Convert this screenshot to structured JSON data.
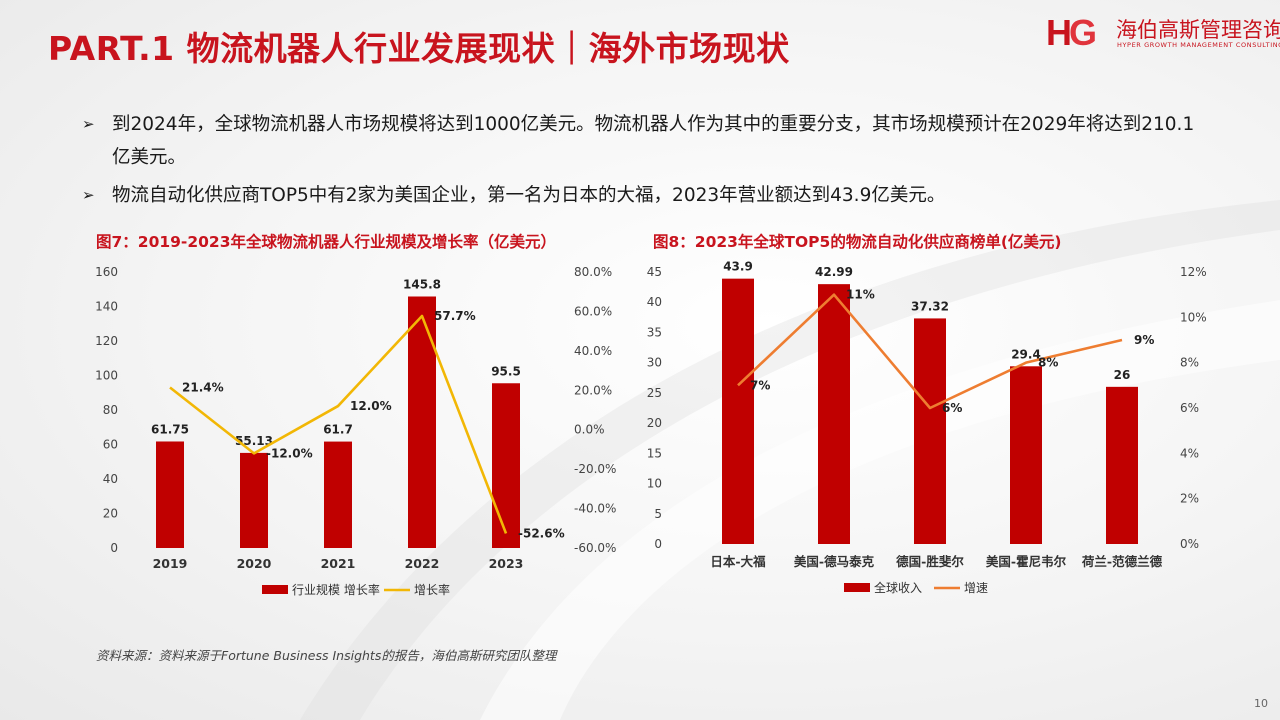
{
  "header": {
    "title": "PART.1 物流机器人行业发展现状｜海外市场现状",
    "logo_mark": "HG",
    "logo_cn": "海伯高斯管理咨询",
    "logo_en": "HYPER GROWTH MANAGEMENT CONSULTING"
  },
  "bullets": [
    "到2024年，全球物流机器人市场规模将达到1000亿美元。物流机器人作为其中的重要分支，其市场规模预计在2029年将达到210.1亿美元。",
    "物流自动化供应商TOP5中有2家为美国企业，第一名为日本的大福，2023年营业额达到43.9亿美元。"
  ],
  "colors": {
    "accent": "#c8141e",
    "bar": "#c00000",
    "line1": "#f2b705",
    "line2": "#ee7d31"
  },
  "icons": {
    "bullet": "arrow-bullet-icon"
  },
  "chart_data": [
    {
      "type": "bar",
      "title": "图7：2019-2023年全球物流机器人行业规模及增长率（亿美元）",
      "categories": [
        "2019",
        "2020",
        "2021",
        "2022",
        "2023"
      ],
      "series": [
        {
          "name": "行业规模 增长率",
          "kind": "bar",
          "axis": "left",
          "values": [
            61.75,
            55.13,
            61.7,
            145.8,
            95.5
          ],
          "labels": [
            "61.75",
            "55.13",
            "61.7",
            "145.8",
            "95.5"
          ]
        },
        {
          "name": "增长率",
          "kind": "line",
          "axis": "right",
          "values": [
            21.4,
            -12.0,
            12.0,
            57.7,
            -52.6
          ],
          "labels": [
            "21.4%",
            "-12.0%",
            "12.0%",
            "57.7%",
            "-52.6%"
          ]
        }
      ],
      "y_left": {
        "min": 0,
        "max": 160,
        "ticks": [
          "160",
          "140",
          "120",
          "100",
          "80",
          "60",
          "40",
          "20",
          "0"
        ]
      },
      "y_right": {
        "min": -60,
        "max": 80,
        "ticks": [
          "80.0%",
          "60.0%",
          "40.0%",
          "20.0%",
          "0.0%",
          "-20.0%",
          "-40.0%",
          "-60.0%"
        ]
      },
      "legend": "bottom"
    },
    {
      "type": "bar",
      "title": "图8：2023年全球TOP5的物流自动化供应商榜单(亿美元)",
      "categories": [
        "日本-大福",
        "美国-德马泰克",
        "德国-胜斐尔",
        "美国-霍尼韦尔",
        "荷兰-范德兰德"
      ],
      "series": [
        {
          "name": "全球收入",
          "kind": "bar",
          "axis": "left",
          "values": [
            43.9,
            42.99,
            37.32,
            29.4,
            26
          ],
          "labels": [
            "43.9",
            "42.99",
            "37.32",
            "29.4",
            "26"
          ]
        },
        {
          "name": "增速",
          "kind": "line",
          "axis": "right",
          "values": [
            7,
            11,
            6,
            8,
            9
          ],
          "labels": [
            "7%",
            "11%",
            "6%",
            "8%",
            "9%"
          ]
        }
      ],
      "y_left": {
        "min": 0,
        "max": 45,
        "ticks": [
          "45",
          "40",
          "35",
          "30",
          "25",
          "20",
          "15",
          "10",
          "5",
          "0"
        ]
      },
      "y_right": {
        "min": 0,
        "max": 12,
        "ticks": [
          "12%",
          "10%",
          "8%",
          "6%",
          "4%",
          "2%",
          "0%"
        ]
      },
      "legend": "bottom"
    }
  ],
  "source": "资料来源：资料来源于Fortune Business Insights的报告，海伯高斯研究团队整理",
  "page_number": "10"
}
